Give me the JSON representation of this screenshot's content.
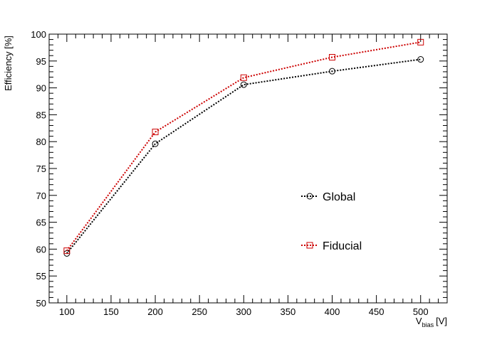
{
  "chart_data": {
    "type": "line",
    "x": [
      100,
      200,
      300,
      400,
      500
    ],
    "series": [
      {
        "name": "Global",
        "values": [
          59.2,
          79.6,
          90.6,
          93.1,
          95.3
        ],
        "color": "#000000",
        "marker": "circle",
        "line_style": "dotted"
      },
      {
        "name": "Fiducial",
        "values": [
          59.7,
          81.8,
          91.9,
          95.7,
          98.5
        ],
        "color": "#cc0000",
        "marker": "square",
        "line_style": "dotted"
      }
    ],
    "xlabel": {
      "main": "V",
      "sub": "bias",
      "unit": "[V]"
    },
    "ylabel": "Efficiency [%]",
    "xlim": [
      80,
      530
    ],
    "ylim": [
      50,
      100
    ],
    "x_ticks": [
      100,
      150,
      200,
      250,
      300,
      350,
      400,
      450,
      500
    ],
    "y_ticks": [
      50,
      55,
      60,
      65,
      70,
      75,
      80,
      85,
      90,
      95,
      100
    ],
    "grid": false,
    "legend_position": "center-right"
  }
}
